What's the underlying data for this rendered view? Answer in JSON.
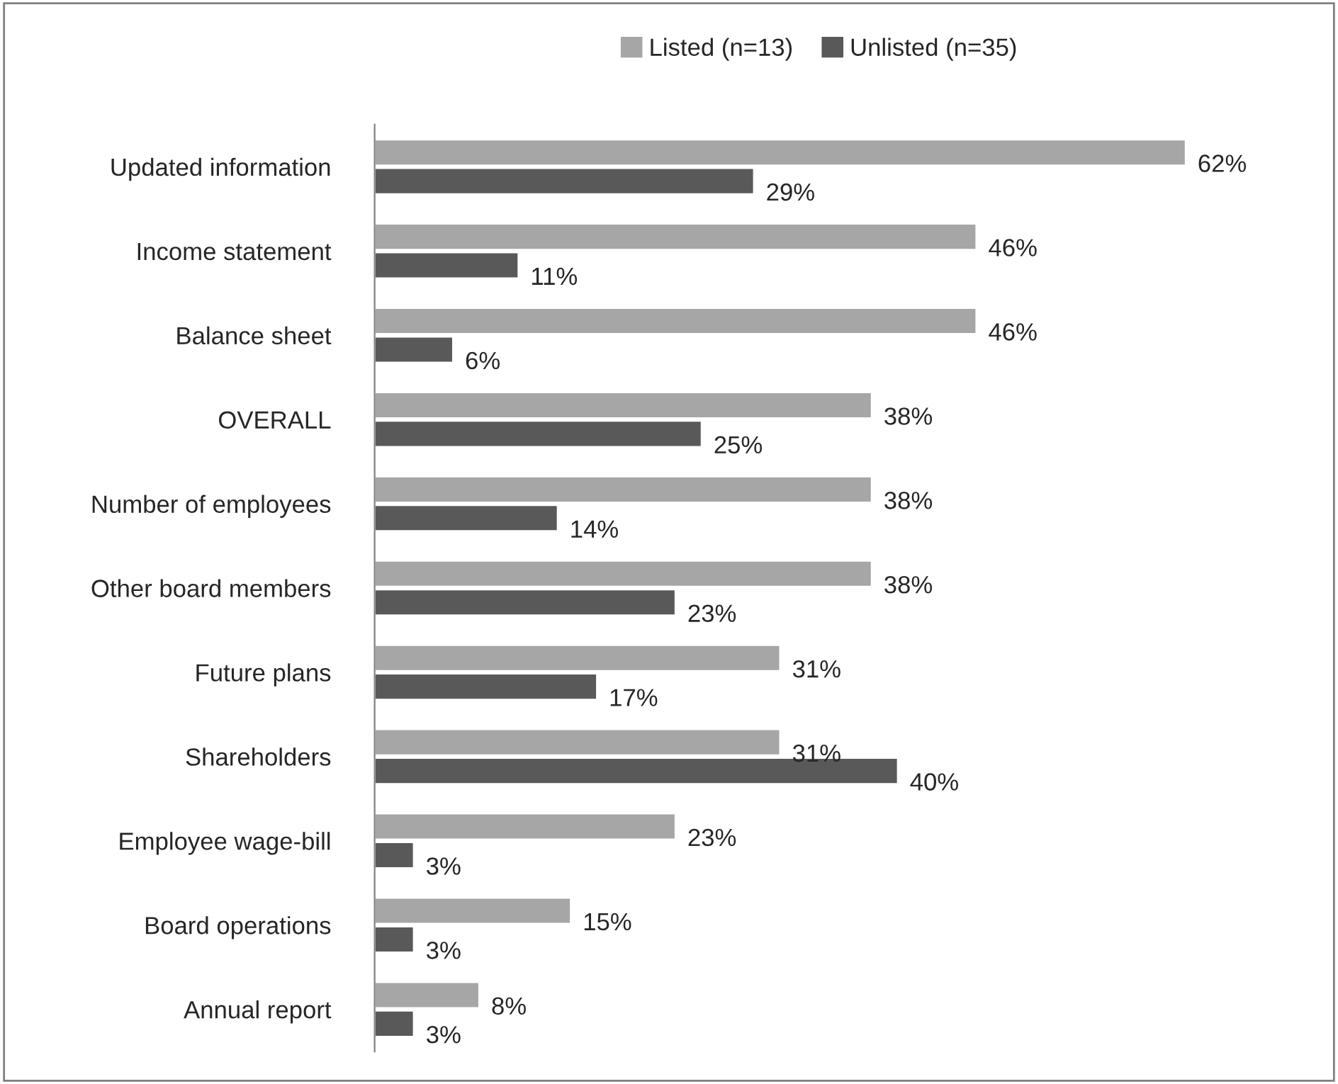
{
  "chart_data": {
    "type": "bar",
    "orientation": "horizontal",
    "categories": [
      "Updated information",
      "Income statement",
      "Balance sheet",
      "OVERALL",
      "Number of employees",
      "Other board members",
      "Future plans",
      "Shareholders",
      "Employee wage-bill",
      "Board operations",
      "Annual report"
    ],
    "series": [
      {
        "name": "Listed (n=13)",
        "color": "#a6a6a6",
        "values": [
          62,
          46,
          46,
          38,
          38,
          38,
          31,
          31,
          23,
          15,
          8
        ],
        "value_labels": [
          "62%",
          "46%",
          "46%",
          "38%",
          "38%",
          "38%",
          "31%",
          "31%",
          "23%",
          "15%",
          "8%"
        ]
      },
      {
        "name": "Unlisted (n=35)",
        "color": "#595959",
        "values": [
          29,
          11,
          6,
          25,
          14,
          23,
          17,
          40,
          3,
          3,
          3
        ],
        "value_labels": [
          "29%",
          "11%",
          "6%",
          "25%",
          "14%",
          "23%",
          "17%",
          "40%",
          "3%",
          "3%",
          "3%"
        ]
      }
    ],
    "tick_labels": "y",
    "legend": "top",
    "grid": false
  }
}
